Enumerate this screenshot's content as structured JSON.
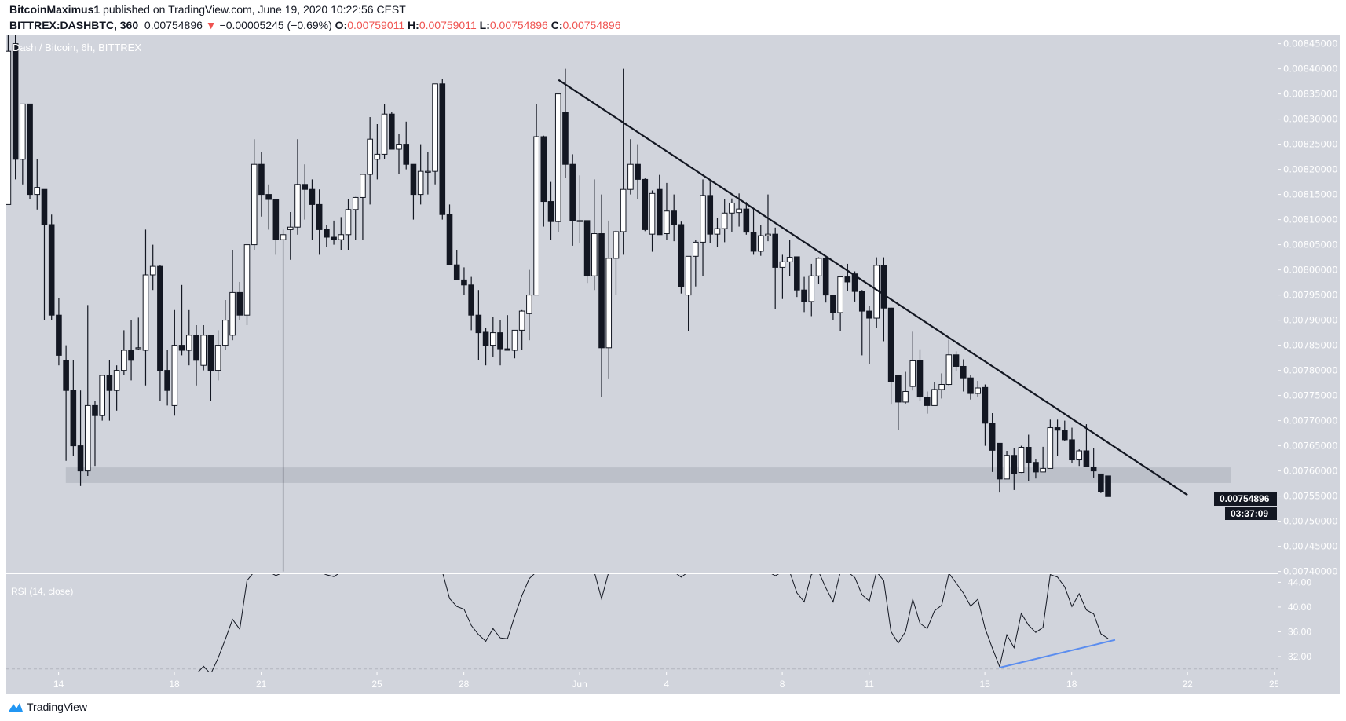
{
  "header": {
    "author": "BitcoinMaximus1",
    "published": " published on TradingView.com, June 19, 2020 10:22:56 CEST",
    "symbol": "BITTREX:DASHBTC, 360",
    "last": "0.00754896",
    "change": "−0.00005245 (−0.69%)",
    "o_label": "O:",
    "o": "0.00759011",
    "h_label": "H:",
    "h": "0.00759011",
    "l_label": "L:",
    "l": "0.00754896",
    "c_label": "C:",
    "c": "0.00754896",
    "down_arrow": "▼"
  },
  "chart_legend": "Dash / Bitcoin, 6h, BITTREX",
  "rsi_legend": "RSI (14, close)",
  "last_price_label": "0.00754896",
  "countdown": "03:37:09",
  "footer": {
    "brand": "TradingView",
    "icon": "tradingview-logo-icon"
  },
  "colors": {
    "background": "#d1d4dc",
    "bear": "#131722",
    "bull": "#ffffff",
    "down": "#ef5350",
    "trendline": "#131722",
    "rsi_trendline": "#5b8def",
    "support_zone": "#b9bcc5",
    "brand": "#2196f3"
  },
  "chart_data": {
    "type": "candlestick",
    "interval": "6h",
    "ylim": [
      0.0074,
      0.00845
    ],
    "y_ticks": [
      "0.00845000",
      "0.00840000",
      "0.00835000",
      "0.00830000",
      "0.00825000",
      "0.00820000",
      "0.00815000",
      "0.00810000",
      "0.00805000",
      "0.00800000",
      "0.00795000",
      "0.00790000",
      "0.00785000",
      "0.00780000",
      "0.00775000",
      "0.00770000",
      "0.00765000",
      "0.00760000",
      "0.00755000",
      "0.00750000",
      "0.00745000",
      "0.00740000"
    ],
    "x_ticks": [
      {
        "label": "14",
        "date": "2020-05-14"
      },
      {
        "label": "18",
        "date": "2020-05-18"
      },
      {
        "label": "21",
        "date": "2020-05-21"
      },
      {
        "label": "25",
        "date": "2020-05-25"
      },
      {
        "label": "28",
        "date": "2020-05-28"
      },
      {
        "label": "Jun",
        "date": "2020-06-01"
      },
      {
        "label": "4",
        "date": "2020-06-04"
      },
      {
        "label": "8",
        "date": "2020-06-08"
      },
      {
        "label": "11",
        "date": "2020-06-11"
      },
      {
        "label": "15",
        "date": "2020-06-15"
      },
      {
        "label": "18",
        "date": "2020-06-18"
      },
      {
        "label": "22",
        "date": "2020-06-22"
      },
      {
        "label": "25",
        "date": "2020-06-25"
      }
    ],
    "ohlc": [
      [
        0.00813,
        0.00847,
        0.00813,
        0.008435
      ],
      [
        0.00845,
        0.00847,
        0.00818,
        0.00822
      ],
      [
        0.00822,
        0.00833,
        0.00817,
        0.00833
      ],
      [
        0.00833,
        0.00833,
        0.00814,
        0.00815
      ],
      [
        0.00815,
        0.00822,
        0.00812,
        0.008164
      ],
      [
        0.00816,
        0.00816,
        0.0079,
        0.00809
      ],
      [
        0.00809,
        0.00811,
        0.0079,
        0.00791
      ],
      [
        0.00791,
        0.007944,
        0.00781,
        0.00783
      ],
      [
        0.00782,
        0.00785,
        0.00762,
        0.00776
      ],
      [
        0.00776,
        0.00782,
        0.00763,
        0.00765
      ],
      [
        0.00765,
        0.00776,
        0.00757,
        0.0076
      ],
      [
        0.0076,
        0.00793,
        0.00759,
        0.00773
      ],
      [
        0.00773,
        0.00774,
        0.00761,
        0.00771
      ],
      [
        0.00771,
        0.00779,
        0.0077,
        0.00779
      ],
      [
        0.00779,
        0.00782,
        0.0077,
        0.00776
      ],
      [
        0.00776,
        0.00781,
        0.00772,
        0.0078
      ],
      [
        0.0078,
        0.00788,
        0.00779,
        0.00784
      ],
      [
        0.00784,
        0.0079,
        0.00778,
        0.00782
      ],
      [
        0.007843,
        0.007905,
        0.00784,
        0.007845
      ],
      [
        0.00784,
        0.00808,
        0.00777,
        0.00799
      ],
      [
        0.00799,
        0.00805,
        0.00796,
        0.008007
      ],
      [
        0.008007,
        0.00801,
        0.00774,
        0.0078
      ],
      [
        0.0078,
        0.00784,
        0.00773,
        0.00776
      ],
      [
        0.00773,
        0.00792,
        0.00771,
        0.00785
      ],
      [
        0.00785,
        0.00797,
        0.00783,
        0.00784
      ],
      [
        0.00784,
        0.00792,
        0.00781,
        0.00787
      ],
      [
        0.00787,
        0.00789,
        0.00777,
        0.00782
      ],
      [
        0.00781,
        0.00789,
        0.0078,
        0.00787
      ],
      [
        0.00787,
        0.00787,
        0.00774,
        0.0078
      ],
      [
        0.0078,
        0.00788,
        0.00778,
        0.00785
      ],
      [
        0.00785,
        0.00794,
        0.00784,
        0.0079
      ],
      [
        0.00787,
        0.00804,
        0.00786,
        0.007955
      ],
      [
        0.007955,
        0.007976,
        0.0079,
        0.00791
      ],
      [
        0.00791,
        0.00805,
        0.00789,
        0.00805
      ],
      [
        0.00805,
        0.00826,
        0.00804,
        0.00821
      ],
      [
        0.00821,
        0.008235,
        0.008106,
        0.00815
      ],
      [
        0.00815,
        0.00817,
        0.00808,
        0.00814
      ],
      [
        0.00814,
        0.00814,
        0.00803,
        0.00806
      ],
      [
        0.00806,
        0.00808,
        0.0074,
        0.00807
      ],
      [
        0.00808,
        0.008115,
        0.00802,
        0.008085
      ],
      [
        0.008085,
        0.00826,
        0.00807,
        0.00817
      ],
      [
        0.00817,
        0.00821,
        0.0081,
        0.00816
      ],
      [
        0.00816,
        0.00818,
        0.00806,
        0.00813
      ],
      [
        0.00813,
        0.00816,
        0.00803,
        0.00808
      ],
      [
        0.00808,
        0.00809,
        0.008045,
        0.008065
      ],
      [
        0.008065,
        0.008098,
        0.00805,
        0.00806
      ],
      [
        0.00806,
        0.008105,
        0.00804,
        0.00807
      ],
      [
        0.00807,
        0.00814,
        0.00804,
        0.00812
      ],
      [
        0.00812,
        0.008145,
        0.00806,
        0.008144
      ],
      [
        0.008144,
        0.00819,
        0.00806,
        0.00819
      ],
      [
        0.00819,
        0.008304,
        0.00813,
        0.00826
      ],
      [
        0.00822,
        0.00829,
        0.00818,
        0.00823
      ],
      [
        0.00823,
        0.00833,
        0.00822,
        0.00831
      ],
      [
        0.00831,
        0.008314,
        0.00824,
        0.00824
      ],
      [
        0.00824,
        0.00827,
        0.00819,
        0.00825
      ],
      [
        0.00825,
        0.008295,
        0.0082,
        0.00821
      ],
      [
        0.00821,
        0.00821,
        0.0081,
        0.00815
      ],
      [
        0.00815,
        0.00825,
        0.00813,
        0.008196
      ],
      [
        0.008196,
        0.008235,
        0.00815,
        0.008196
      ],
      [
        0.008196,
        0.00837,
        0.00817,
        0.00837
      ],
      [
        0.00837,
        0.00838,
        0.0081,
        0.00811
      ],
      [
        0.00811,
        0.00813,
        0.00801,
        0.00801
      ],
      [
        0.00801,
        0.00804,
        0.00798,
        0.00798
      ],
      [
        0.00798,
        0.008005,
        0.00795,
        0.00797
      ],
      [
        0.00797,
        0.007986,
        0.00788,
        0.00791
      ],
      [
        0.00791,
        0.00796,
        0.00782,
        0.007875
      ],
      [
        0.007876,
        0.007885,
        0.00781,
        0.00785
      ],
      [
        0.00785,
        0.007907,
        0.007826,
        0.007875
      ],
      [
        0.007875,
        0.0079,
        0.00781,
        0.007843
      ],
      [
        0.007843,
        0.00791,
        0.00784,
        0.00784
      ],
      [
        0.00784,
        0.00788,
        0.007824,
        0.00788
      ],
      [
        0.00788,
        0.00792,
        0.00784,
        0.007918
      ],
      [
        0.007913,
        0.008,
        0.00786,
        0.00795
      ],
      [
        0.00795,
        0.00833,
        0.00795,
        0.008265
      ],
      [
        0.008265,
        0.008267,
        0.008086,
        0.008136
      ],
      [
        0.008136,
        0.008175,
        0.00806,
        0.008096
      ],
      [
        0.008096,
        0.00835,
        0.008075,
        0.00835
      ],
      [
        0.008313,
        0.0084,
        0.008183,
        0.00821
      ],
      [
        0.00821,
        0.00823,
        0.008048,
        0.008098
      ],
      [
        0.008098,
        0.008188,
        0.008053,
        0.008096
      ],
      [
        0.008098,
        0.008098,
        0.007974,
        0.007988
      ],
      [
        0.007988,
        0.00818,
        0.00796,
        0.008072
      ],
      [
        0.008072,
        0.00815,
        0.007747,
        0.007845
      ],
      [
        0.007845,
        0.008098,
        0.007784,
        0.008023
      ],
      [
        0.008023,
        0.008078,
        0.00795,
        0.008076
      ],
      [
        0.008076,
        0.0084,
        0.00803,
        0.00816
      ],
      [
        0.00816,
        0.00826,
        0.00815,
        0.00821
      ],
      [
        0.00821,
        0.00825,
        0.00814,
        0.00818
      ],
      [
        0.00818,
        0.008182,
        0.008077,
        0.00808
      ],
      [
        0.008071,
        0.008158,
        0.008036,
        0.008152
      ],
      [
        0.00816,
        0.008189,
        0.00807,
        0.00807
      ],
      [
        0.008072,
        0.008173,
        0.00806,
        0.008117
      ],
      [
        0.008117,
        0.00815,
        0.008057,
        0.00809
      ],
      [
        0.00809,
        0.008096,
        0.007953,
        0.007967
      ],
      [
        0.00795,
        0.008027,
        0.007878,
        0.008027
      ],
      [
        0.008027,
        0.00806,
        0.007967,
        0.008055
      ],
      [
        0.008055,
        0.00818,
        0.007988,
        0.008148
      ],
      [
        0.008148,
        0.008178,
        0.008053,
        0.008071
      ],
      [
        0.008071,
        0.008103,
        0.008046,
        0.008082
      ],
      [
        0.008082,
        0.00814,
        0.008055,
        0.008113
      ],
      [
        0.008113,
        0.008142,
        0.008076,
        0.008133
      ],
      [
        0.008114,
        0.008152,
        0.008086,
        0.008121
      ],
      [
        0.008121,
        0.008135,
        0.00807,
        0.008075
      ],
      [
        0.008075,
        0.008122,
        0.00803,
        0.008037
      ],
      [
        0.008037,
        0.00809,
        0.008028,
        0.008068
      ],
      [
        0.008068,
        0.00815,
        0.008057,
        0.008071
      ],
      [
        0.008071,
        0.008084,
        0.007922,
        0.008005
      ],
      [
        0.008005,
        0.00803,
        0.007942,
        0.008016
      ],
      [
        0.008016,
        0.00806,
        0.007988,
        0.008025
      ],
      [
        0.008026,
        0.008026,
        0.007946,
        0.00796
      ],
      [
        0.00796,
        0.007986,
        0.007916,
        0.007937
      ],
      [
        0.007937,
        0.008012,
        0.007908,
        0.007988
      ],
      [
        0.007988,
        0.008025,
        0.007972,
        0.008023
      ],
      [
        0.008023,
        0.008025,
        0.007935,
        0.00795
      ],
      [
        0.00795,
        0.00795,
        0.0079,
        0.007915
      ],
      [
        0.007915,
        0.007986,
        0.007878,
        0.007986
      ],
      [
        0.007986,
        0.008012,
        0.007958,
        0.007976
      ],
      [
        0.007992,
        0.007997,
        0.007937,
        0.007957
      ],
      [
        0.007957,
        0.00796,
        0.00783,
        0.007918
      ],
      [
        0.007918,
        0.007929,
        0.007813,
        0.007904
      ],
      [
        0.007904,
        0.008025,
        0.007885,
        0.008009
      ],
      [
        0.008009,
        0.008025,
        0.007858,
        0.007924
      ],
      [
        0.007924,
        0.007925,
        0.007732,
        0.007777
      ],
      [
        0.00779,
        0.00779,
        0.007681,
        0.007737
      ],
      [
        0.007737,
        0.007797,
        0.007734,
        0.007758
      ],
      [
        0.007768,
        0.007877,
        0.00776,
        0.007819
      ],
      [
        0.007819,
        0.007842,
        0.007739,
        0.007747
      ],
      [
        0.007747,
        0.007758,
        0.007714,
        0.00773
      ],
      [
        0.00773,
        0.007777,
        0.00773,
        0.007762
      ],
      [
        0.007762,
        0.007794,
        0.007744,
        0.007772
      ],
      [
        0.007772,
        0.007861,
        0.00777,
        0.007831
      ],
      [
        0.007831,
        0.007838,
        0.007799,
        0.007808
      ],
      [
        0.007808,
        0.007822,
        0.007758,
        0.007785
      ],
      [
        0.007785,
        0.00779,
        0.007742,
        0.007754
      ],
      [
        0.007754,
        0.007779,
        0.007748,
        0.007765
      ],
      [
        0.007766,
        0.007772,
        0.00765,
        0.007695
      ],
      [
        0.007695,
        0.007715,
        0.007598,
        0.007641
      ],
      [
        0.007655,
        0.007655,
        0.007557,
        0.007584
      ],
      [
        0.007584,
        0.00764,
        0.007584,
        0.007631
      ],
      [
        0.007631,
        0.007645,
        0.007562,
        0.007594
      ],
      [
        0.007597,
        0.00765,
        0.007596,
        0.007647
      ],
      [
        0.007647,
        0.007672,
        0.00758,
        0.007617
      ],
      [
        0.007617,
        0.007624,
        0.007585,
        0.007598
      ],
      [
        0.007598,
        0.007648,
        0.007598,
        0.007605
      ],
      [
        0.007605,
        0.007702,
        0.007605,
        0.007686
      ],
      [
        0.007686,
        0.007702,
        0.00763,
        0.007681
      ],
      [
        0.007681,
        0.0077,
        0.00766,
        0.007662
      ],
      [
        0.007662,
        0.007686,
        0.007615,
        0.007622
      ],
      [
        0.007622,
        0.007643,
        0.00761,
        0.00764
      ],
      [
        0.00764,
        0.007693,
        0.007608,
        0.007608
      ],
      [
        0.007608,
        0.007646,
        0.007587,
        0.0076
      ],
      [
        0.007594,
        0.007594,
        0.007556,
        0.007559
      ],
      [
        0.00759011,
        0.00759011,
        0.00754896,
        0.00754896
      ]
    ],
    "last_price": 0.00754896,
    "drawings": {
      "resistance_trendline": {
        "from": {
          "date": "2020-05-31T06:30",
          "price": 0.008378
        },
        "to": {
          "date": "2020-06-22T00:00",
          "price": 0.007552
        }
      },
      "support_zone": {
        "from_date": "2020-05-14T06:00",
        "to_date": "2020-06-23T12:00",
        "price_low": 0.007576,
        "price_high": 0.007607
      }
    },
    "rsi": {
      "length": 14,
      "source": "close",
      "y_ticks": [
        "44.00",
        "40.00",
        "36.00",
        "32.00"
      ],
      "visible_range": [
        30,
        45.3
      ],
      "lower_band": 30,
      "trendline": {
        "from": {
          "date": "2020-06-15T12:00",
          "value": 30.2
        },
        "to": {
          "date": "2020-06-19T12:00",
          "value": 34.7
        }
      }
    }
  }
}
